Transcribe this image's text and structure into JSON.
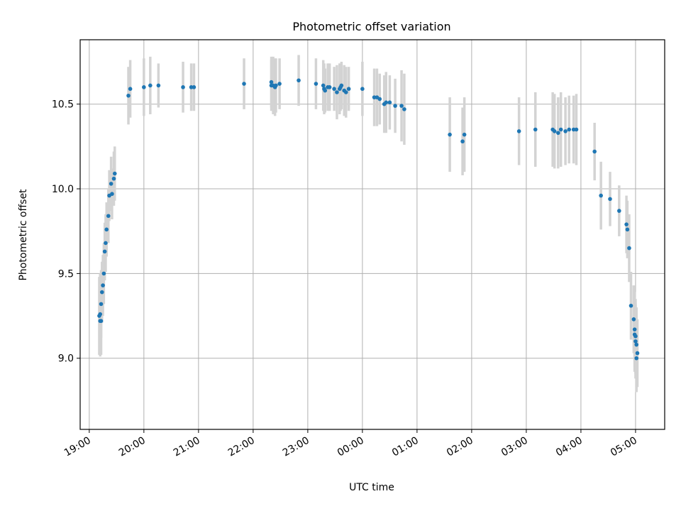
{
  "chart_data": {
    "type": "scatter",
    "title": "Photometric offset variation",
    "xlabel": "UTC time",
    "ylabel": "Photometric offset",
    "grid": true,
    "x_ticks": [
      "19:00",
      "20:00",
      "21:00",
      "22:00",
      "23:00",
      "00:00",
      "01:00",
      "02:00",
      "03:00",
      "04:00",
      "05:00"
    ],
    "y_ticks": [
      "9.0",
      "9.5",
      "10.0",
      "10.5"
    ],
    "xlim": [
      "18:50",
      "05:32"
    ],
    "ylim": [
      8.58,
      10.88
    ],
    "colors": {
      "point": "#1f77b4",
      "errorbar": "#d3d3d3",
      "grid": "#b0b0b0"
    },
    "series": [
      {
        "x": [
          "19:11",
          "19:12",
          "19:12",
          "19:13",
          "19:13",
          "19:14",
          "19:15",
          "19:16",
          "19:17",
          "19:18",
          "19:19",
          "19:21",
          "19:22",
          "19:24",
          "19:25",
          "19:27",
          "19:28",
          "19:43",
          "19:45",
          "20:00",
          "20:07",
          "20:16",
          "20:43",
          "20:52",
          "20:55",
          "21:50",
          "22:20",
          "22:20",
          "22:22",
          "22:24",
          "22:25",
          "22:29",
          "22:50",
          "23:09",
          "23:17",
          "23:18",
          "23:19",
          "23:22",
          "23:24",
          "23:29",
          "23:32",
          "23:35",
          "23:36",
          "23:37",
          "23:40",
          "23:42",
          "23:45",
          "00:00",
          "00:13",
          "00:16",
          "00:19",
          "00:24",
          "00:26",
          "00:30",
          "00:36",
          "00:43",
          "00:46",
          "01:36",
          "01:50",
          "01:52",
          "02:52",
          "03:10",
          "03:29",
          "03:31",
          "03:35",
          "03:38",
          "03:43",
          "03:47",
          "03:52",
          "03:55",
          "04:15",
          "04:22",
          "04:32",
          "04:42",
          "04:50",
          "04:51",
          "04:53",
          "04:55",
          "04:58",
          "04:59",
          "04:59",
          "05:00",
          "05:00",
          "05:01",
          "05:01",
          "05:02"
        ],
        "y": [
          9.25,
          9.26,
          9.22,
          9.22,
          9.32,
          9.39,
          9.43,
          9.5,
          9.63,
          9.68,
          9.76,
          9.84,
          9.96,
          10.03,
          9.97,
          10.06,
          10.09,
          10.55,
          10.59,
          10.6,
          10.61,
          10.61,
          10.6,
          10.6,
          10.6,
          10.62,
          10.61,
          10.63,
          10.61,
          10.6,
          10.61,
          10.62,
          10.64,
          10.62,
          10.61,
          10.59,
          10.58,
          10.6,
          10.6,
          10.59,
          10.57,
          10.59,
          10.6,
          10.61,
          10.58,
          10.57,
          10.59,
          10.59,
          10.54,
          10.54,
          10.53,
          10.5,
          10.51,
          10.51,
          10.49,
          10.49,
          10.47,
          10.32,
          10.28,
          10.32,
          10.34,
          10.35,
          10.35,
          10.34,
          10.33,
          10.35,
          10.34,
          10.35,
          10.35,
          10.35,
          10.22,
          9.96,
          9.94,
          9.87,
          9.79,
          9.76,
          9.65,
          9.31,
          9.23,
          9.17,
          9.14,
          9.13,
          9.1,
          9.08,
          9.0,
          9.03
        ],
        "yerr": [
          0.23,
          0.24,
          0.21,
          0.2,
          0.2,
          0.18,
          0.18,
          0.18,
          0.17,
          0.17,
          0.16,
          0.16,
          0.15,
          0.16,
          0.15,
          0.16,
          0.16,
          0.17,
          0.17,
          0.17,
          0.17,
          0.13,
          0.15,
          0.14,
          0.14,
          0.15,
          0.15,
          0.15,
          0.17,
          0.17,
          0.16,
          0.15,
          0.15,
          0.15,
          0.15,
          0.15,
          0.13,
          0.14,
          0.14,
          0.13,
          0.16,
          0.15,
          0.14,
          0.14,
          0.15,
          0.15,
          0.13,
          0.16,
          0.17,
          0.17,
          0.15,
          0.17,
          0.18,
          0.16,
          0.16,
          0.21,
          0.21,
          0.22,
          0.2,
          0.22,
          0.2,
          0.22,
          0.22,
          0.22,
          0.21,
          0.22,
          0.2,
          0.2,
          0.2,
          0.21,
          0.17,
          0.2,
          0.16,
          0.15,
          0.17,
          0.17,
          0.2,
          0.2,
          0.2,
          0.22,
          0.22,
          0.22,
          0.22,
          0.22,
          0.2,
          0.2
        ]
      }
    ]
  }
}
